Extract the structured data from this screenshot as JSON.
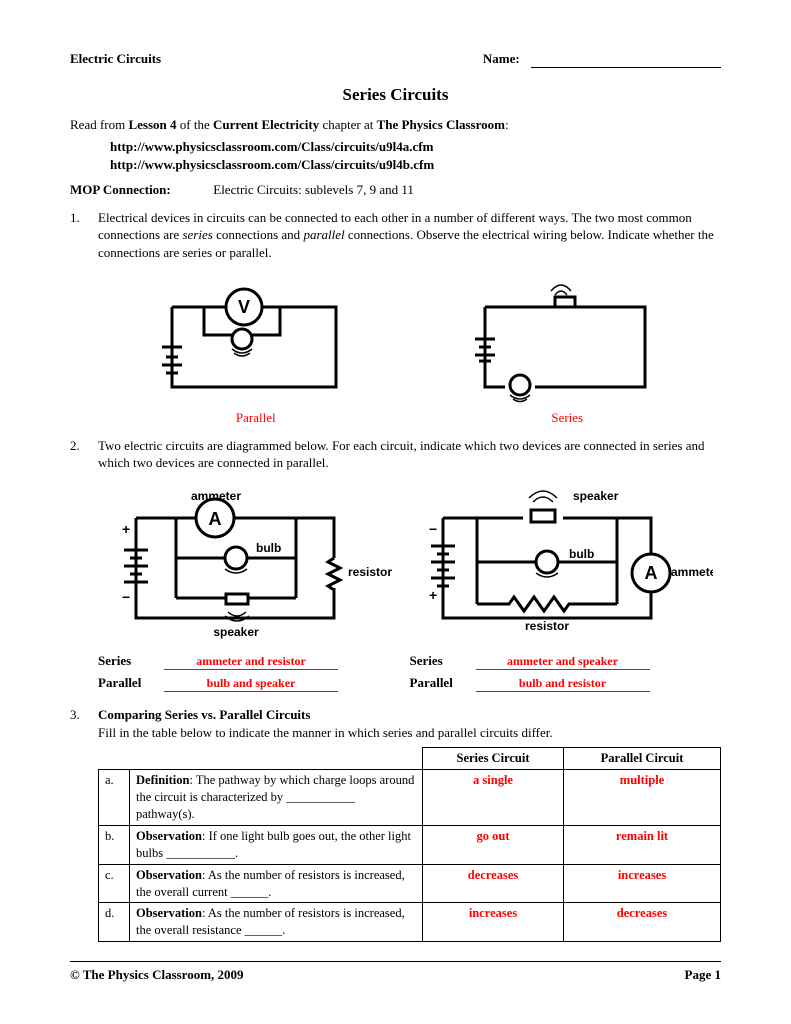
{
  "header": {
    "subject": "Electric Circuits",
    "name_label": "Name:"
  },
  "title": "Series Circuits",
  "intro": {
    "prefix": "Read from ",
    "lesson": "Lesson 4",
    "mid": " of the ",
    "chapter": "Current Electricity",
    "suffix": " chapter at ",
    "site": "The Physics Classroom",
    "end": ":"
  },
  "links": {
    "a": "http://www.physicsclassroom.com/Class/circuits/u9l4a.cfm",
    "b": "http://www.physicsclassroom.com/Class/circuits/u9l4b.cfm"
  },
  "mop": {
    "label": "MOP Connection:",
    "value": "Electric Circuits:  sublevels 7, 9 and 11"
  },
  "q1": {
    "num": "1.",
    "text_a": "Electrical devices in circuits can be connected to each other in a number of different ways.  The two most common connections are ",
    "em1": "series",
    "text_b": " connections and ",
    "em2": "parallel",
    "text_c": " connections.  Observe the electrical wiring below.  Indicate whether the connections are series or parallel.",
    "cap_left": "Parallel",
    "cap_right": "Series"
  },
  "q2": {
    "num": "2.",
    "text": "Two electric circuits are diagrammed below.  For each circuit, indicate which two devices are connected in series and which two devices are connected in parallel.",
    "labels": {
      "ammeter": "ammeter",
      "resistor": "resistor",
      "bulb": "bulb",
      "speaker": "speaker"
    },
    "answers": {
      "left": {
        "series_label": "Series",
        "series_val": "ammeter and resistor",
        "parallel_label": "Parallel",
        "parallel_val": "bulb and speaker"
      },
      "right": {
        "series_label": "Series",
        "series_val": "ammeter and speaker",
        "parallel_label": "Parallel",
        "parallel_val": "bulb and resistor"
      }
    }
  },
  "q3": {
    "num": "3.",
    "heading": "Comparing Series vs. Parallel Circuits",
    "text": "Fill in the table below to indicate the manner in which series and parallel circuits differ.",
    "th_series": "Series Circuit",
    "th_parallel": "Parallel Circuit",
    "rows": [
      {
        "letter": "a.",
        "label": "Definition",
        "desc": ":  The pathway by which charge loops around the circuit is characterized by ___________ pathway(s).",
        "series": "a single",
        "parallel": "multiple"
      },
      {
        "letter": "b.",
        "label": "Observation",
        "desc": ":  If one light bulb goes out, the other light bulbs ___________.",
        "series": "go out",
        "parallel": "remain lit"
      },
      {
        "letter": "c.",
        "label": "Observation",
        "desc": ":  As the number of resistors is increased, the overall current ______.",
        "series": "decreases",
        "parallel": "increases"
      },
      {
        "letter": "d.",
        "label": "Observation",
        "desc": ":  As the number of resistors is increased, the overall resistance ______.",
        "series": "increases",
        "parallel": "decreases"
      }
    ]
  },
  "footer": {
    "left": "©  The Physics Classroom, 2009",
    "right": "Page 1"
  },
  "style": {
    "answer_color": "#ff0000",
    "text_color": "#000000",
    "page_bg": "#ffffff",
    "font_family": "Palatino",
    "stroke": "#000000",
    "stroke_width": 3
  }
}
